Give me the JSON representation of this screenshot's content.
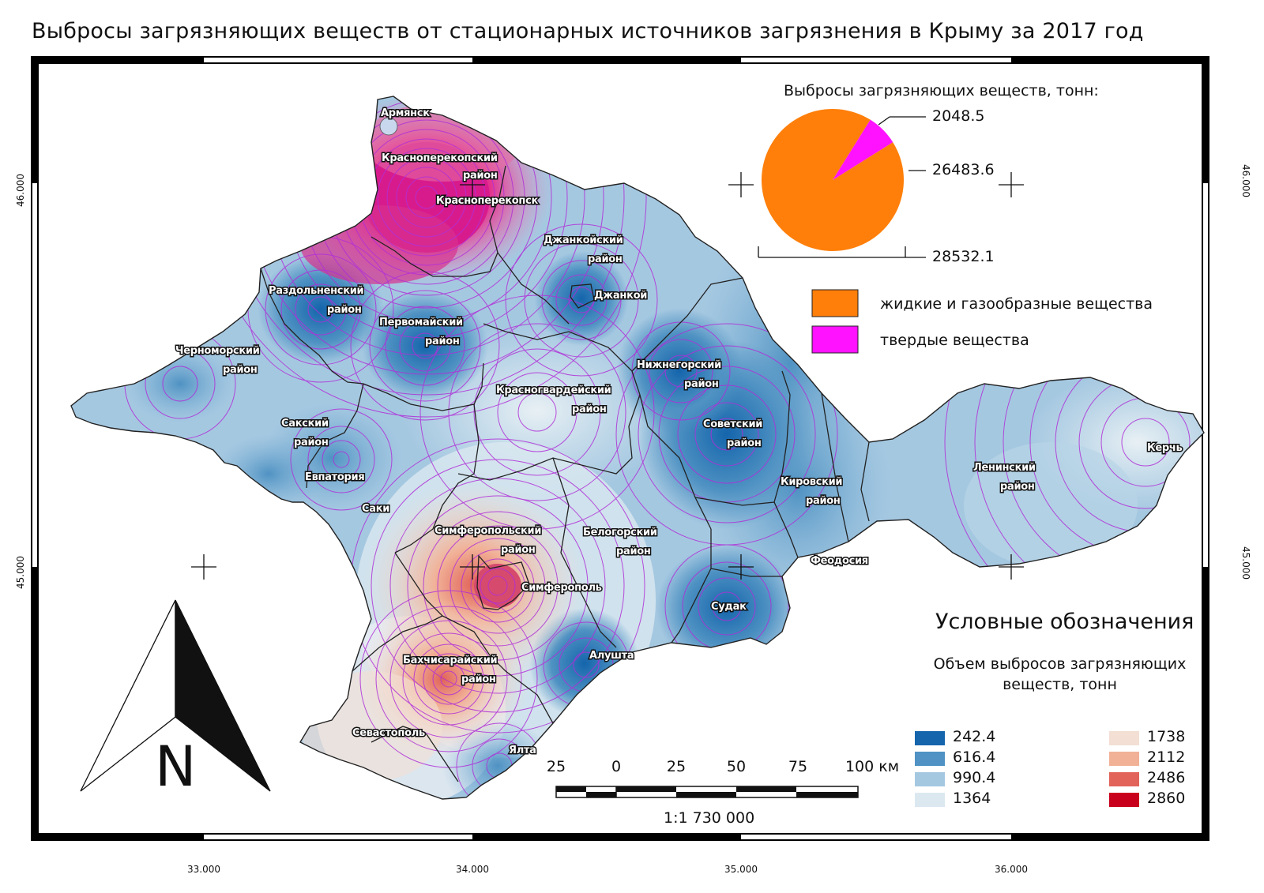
{
  "title": "Выбросы загрязняющих веществ от стационарных источников загрязнения в Крыму за 2017 год",
  "coordinates": {
    "longitudes": [
      "33.000",
      "34.000",
      "35.000",
      "36.000"
    ],
    "latitudes": [
      "46.000",
      "45.000"
    ]
  },
  "places": {
    "armyansk": "Армянск",
    "krasnoperekopsky_1": "Красноперекопский",
    "krasnoperekopsky_2": "район",
    "krasnoperekopsk": "Красноперекопск",
    "dzhankoysky_1": "Джанкойский",
    "dzhankoysky_2": "район",
    "dzhankoy": "Джанкой",
    "razdolnensky_1": "Раздольненский",
    "razdolnensky_2": "район",
    "pervomaysky_1": "Первомайский",
    "pervomaysky_2": "район",
    "chernomorsky_1": "Черноморский",
    "chernomorsky_2": "район",
    "krasnogvardeysky_1": "Красногвардейский",
    "krasnogvardeysky_2": "район",
    "nizhnegorsky_1": "Нижнегорский",
    "nizhnegorsky_2": "район",
    "sovetsky_1": "Советский",
    "sovetsky_2": "район",
    "saksky_1": "Сакский",
    "saksky_2": "район",
    "evpatoriya": "Евпатория",
    "saki": "Саки",
    "kirovsky_1": "Кировский",
    "kirovsky_2": "район",
    "leninsky_1": "Ленинский",
    "leninsky_2": "район",
    "kerch": "Керчь",
    "simferopolsky_1": "Симферопольский",
    "simferopolsky_2": "район",
    "belogorsky_1": "Белогорский",
    "belogorsky_2": "район",
    "simferopol": "Симферополь",
    "feodosiya": "Феодосия",
    "sudak": "Судак",
    "alushta": "Алушта",
    "bakhchisaraysky_1": "Бахчисарайский",
    "bakhchisaraysky_2": "район",
    "sevastopol": "Севастополь",
    "yalta": "Ялта"
  },
  "pie": {
    "title": "Выбросы загрязняющих веществ, тонн:",
    "total_label": "28532.1",
    "slices": [
      {
        "name": "жидкие и газообразные вещества",
        "value": 26483.6,
        "label": "26483.6",
        "color": "#ff7f0a"
      },
      {
        "name": "твердые вещества",
        "value": 2048.5,
        "label": "2048.5",
        "color": "#ff12ff"
      }
    ]
  },
  "legend": {
    "heading": "Условные обозначения",
    "subheading": "Объем выбросов загрязняющих веществ, тонн",
    "classes": [
      {
        "label": "242.4",
        "color": "#1565ac"
      },
      {
        "label": "616.4",
        "color": "#4f92c3"
      },
      {
        "label": "990.4",
        "color": "#a5c8e1"
      },
      {
        "label": "1364",
        "color": "#dbe8f0"
      },
      {
        "label": "1738",
        "color": "#f3dfd4"
      },
      {
        "label": "2112",
        "color": "#f1b197"
      },
      {
        "label": "2486",
        "color": "#e1635a"
      },
      {
        "label": "2860",
        "color": "#c9001c"
      }
    ]
  },
  "scale": {
    "ticks": [
      "25",
      "0",
      "25",
      "50",
      "75",
      "100 км"
    ],
    "ratio": "1:1 730 000"
  },
  "north_arrow": {
    "letter": "N"
  },
  "colors": {
    "contour": "#b02fd8",
    "boundary": "#222222"
  }
}
